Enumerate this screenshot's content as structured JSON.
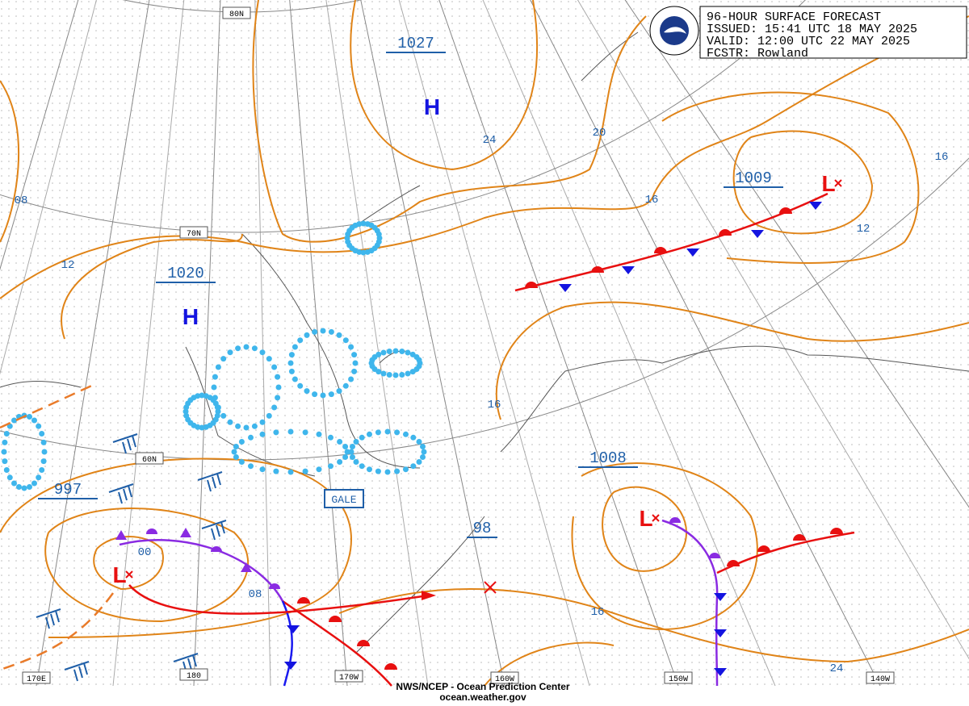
{
  "header": {
    "lines": [
      "96-HOUR SURFACE FORECAST",
      "ISSUED:  15:41 UTC 18 MAY 2025",
      "VALID:   12:00 UTC 22 MAY 2025",
      "FCSTR: Rowland"
    ]
  },
  "footer": {
    "agency": "NWS/NCEP - Ocean Prediction Center",
    "url": "ocean.weather.gov"
  },
  "grid_labels": [
    "80N",
    "70N",
    "60N",
    "170E",
    "180",
    "170W",
    "160W",
    "150W",
    "140W"
  ],
  "highs": [
    {
      "symbol": "H",
      "pressure": "1027"
    },
    {
      "symbol": "H",
      "pressure": "1020"
    }
  ],
  "lows": [
    {
      "symbol": "L",
      "pressure": "1009"
    },
    {
      "symbol": "L",
      "pressure": "1008"
    },
    {
      "symbol": "L",
      "pressure": "997"
    }
  ],
  "isobar_labels": [
    "24",
    "20",
    "16",
    "16",
    "12",
    "08",
    "12",
    "16",
    "16",
    "00",
    "08",
    "24"
  ],
  "forecast_point": {
    "pressure": "98"
  },
  "warnings": [
    "GALE"
  ]
}
